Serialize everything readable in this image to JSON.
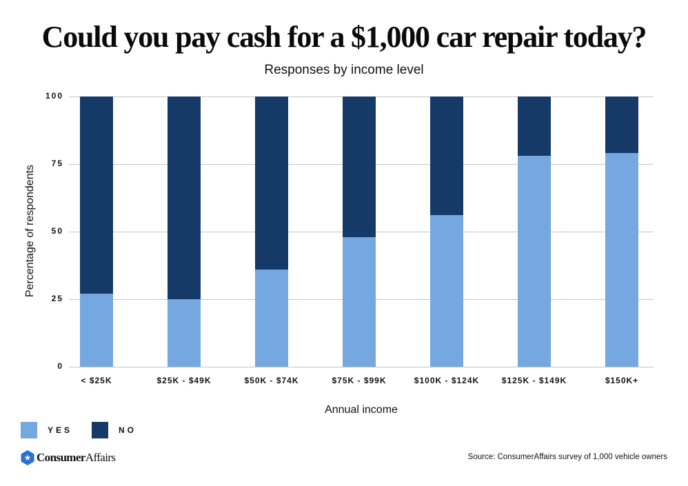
{
  "header": {
    "title": "Could you pay cash for a $1,000 car repair today?",
    "subtitle": "Responses by income level"
  },
  "axes": {
    "y_label": "Percentage of respondents",
    "x_label": "Annual income",
    "y_ticks": [
      "100",
      "75",
      "50",
      "25",
      "0"
    ]
  },
  "legend": {
    "items": [
      {
        "label": "YES",
        "color": "#75a7e0"
      },
      {
        "label": "NO",
        "color": "#163a67"
      }
    ]
  },
  "footer": {
    "brand_bold": "Consumer",
    "brand_light": "Affairs",
    "source": "Source: ConsumerAffairs survey of 1,000 vehicle owners"
  },
  "colors": {
    "yes": "#75a7e0",
    "no": "#163a67",
    "grid": "#c4c4c4",
    "brand_icon": "#2a6fd6"
  },
  "chart_data": {
    "type": "bar",
    "stacked": true,
    "title": "Could you pay cash for a $1,000 car repair today?",
    "subtitle": "Responses by income level",
    "xlabel": "Annual income",
    "ylabel": "Percentage of respondents",
    "ylim": [
      0,
      100
    ],
    "yticks": [
      0,
      25,
      50,
      75,
      100
    ],
    "grid": true,
    "legend_position": "bottom-left",
    "categories": [
      "< $25K",
      "$25K - $49K",
      "$50K - $74K",
      "$75K - $99K",
      "$100K - $124K",
      "$125K - $149K",
      "$150K+"
    ],
    "series": [
      {
        "name": "YES",
        "color": "#75a7e0",
        "values": [
          27,
          25,
          36,
          48,
          56,
          78,
          79
        ]
      },
      {
        "name": "NO",
        "color": "#163a67",
        "values": [
          73,
          75,
          64,
          52,
          44,
          22,
          21
        ]
      }
    ],
    "source": "Source: ConsumerAffairs survey of 1,000 vehicle owners"
  }
}
